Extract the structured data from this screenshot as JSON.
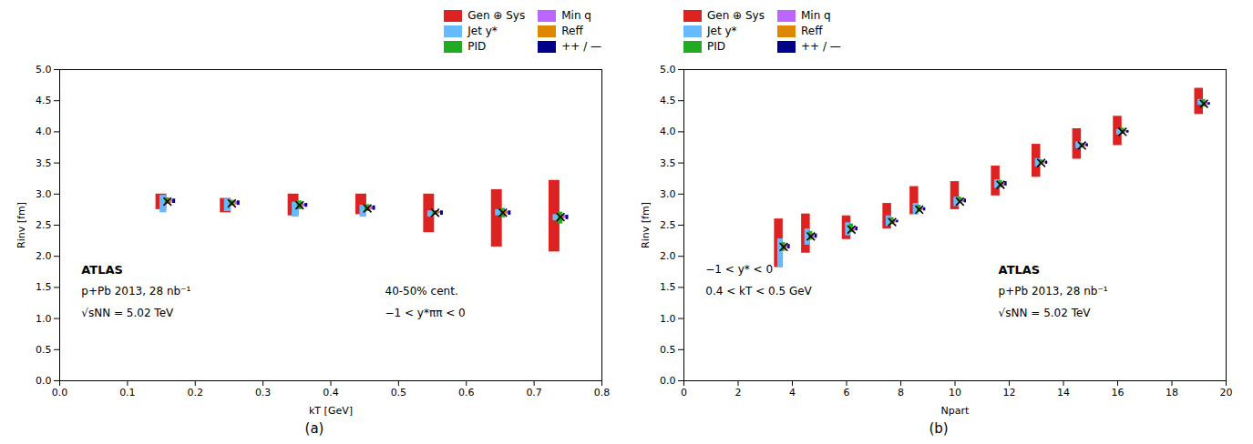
{
  "chart_data": [
    {
      "type": "bar",
      "xlabel": "kT [GeV]",
      "ylabel": "Rinv [fm]",
      "xlim": [
        0,
        0.8
      ],
      "ylim": [
        0,
        5
      ],
      "xticks": [
        {
          "value": 0,
          "label": "0.0"
        },
        0.1,
        0.2,
        0.3,
        0.4,
        0.5,
        0.6,
        0.7,
        0.8
      ],
      "yticks": [
        {
          "value": 0,
          "label": "0.0"
        },
        0.5,
        {
          "value": 1,
          "label": "1.0"
        },
        1.5,
        {
          "value": 2,
          "label": "2.0"
        },
        2.5,
        {
          "value": 3,
          "label": "3.0"
        },
        3.5,
        {
          "value": 4,
          "label": "4.0"
        },
        4.5,
        {
          "value": 5,
          "label": "5.0"
        }
      ],
      "x": [
        0.15,
        0.245,
        0.345,
        0.445,
        0.545,
        0.645,
        0.73
      ],
      "series": [
        {
          "name": "Gen ⊕ Sys",
          "color": "#dd2222",
          "low": [
            2.75,
            2.7,
            2.65,
            2.67,
            2.38,
            2.15,
            2.07
          ],
          "high": [
            3.0,
            2.93,
            3.0,
            3.0,
            3.0,
            3.07,
            3.22
          ]
        },
        {
          "name": "Jet y*",
          "color": "#66bbff",
          "low": [
            2.7,
            2.72,
            2.63,
            2.63,
            2.63,
            2.65,
            2.57
          ],
          "high": [
            2.98,
            2.92,
            2.87,
            2.82,
            2.73,
            2.75,
            2.67
          ]
        },
        {
          "name": "PID",
          "color": "#22aa22",
          "low": [
            2.84,
            2.81,
            2.75,
            2.72,
            2.66,
            2.62,
            2.52
          ],
          "high": [
            2.94,
            2.9,
            2.89,
            2.83,
            2.73,
            2.77,
            2.71
          ]
        },
        {
          "name": "Min q",
          "color": "#bb66ff",
          "low": [
            2.86,
            2.83,
            2.8,
            2.75,
            2.69,
            2.68,
            2.61
          ],
          "high": [
            2.91,
            2.88,
            2.84,
            2.8,
            2.72,
            2.72,
            2.66
          ]
        },
        {
          "name": "Reff",
          "color": "#dd8800",
          "low": [
            2.85,
            2.82,
            2.79,
            2.74,
            2.68,
            2.67,
            2.6
          ],
          "high": [
            2.92,
            2.89,
            2.85,
            2.81,
            2.73,
            2.73,
            2.67
          ]
        },
        {
          "name": "++ / —",
          "color": "#000088",
          "low": [
            2.85,
            2.82,
            2.79,
            2.74,
            2.66,
            2.66,
            2.59
          ],
          "high": [
            2.92,
            2.89,
            2.85,
            2.81,
            2.73,
            2.73,
            2.66
          ]
        }
      ],
      "central_values": {
        "values": [
          2.88,
          2.85,
          2.82,
          2.77,
          2.7,
          2.7,
          2.63
        ],
        "marker": "x",
        "color": "black"
      },
      "legend": "upper right",
      "annotations": [
        "ATLAS",
        "p+Pb 2013, 28 nb⁻¹",
        "√sNN = 5.02 TeV",
        "40-50% cent.",
        "−1 < y*ππ < 0"
      ],
      "caption": "(a)"
    },
    {
      "type": "bar",
      "xlabel": "Npart",
      "ylabel": "Rinv [fm]",
      "xlim": [
        0,
        20
      ],
      "ylim": [
        0,
        5
      ],
      "xticks": [
        0,
        2,
        4,
        6,
        8,
        10,
        12,
        14,
        16,
        18,
        20
      ],
      "yticks": [
        {
          "value": 0,
          "label": "0.0"
        },
        0.5,
        {
          "value": 1,
          "label": "1.0"
        },
        1.5,
        {
          "value": 2,
          "label": "2.0"
        },
        2.5,
        {
          "value": 3,
          "label": "3.0"
        },
        3.5,
        {
          "value": 4,
          "label": "4.0"
        },
        4.5,
        {
          "value": 5,
          "label": "5.0"
        }
      ],
      "x": [
        3.5,
        4.5,
        6.0,
        7.5,
        8.5,
        10.0,
        11.5,
        13.0,
        14.5,
        16.0,
        19.0
      ],
      "series": [
        {
          "name": "Gen ⊕ Sys",
          "color": "#dd2222",
          "low": [
            1.82,
            2.05,
            2.27,
            2.44,
            2.67,
            2.75,
            2.97,
            3.27,
            3.56,
            3.78,
            4.28
          ],
          "high": [
            2.6,
            2.68,
            2.65,
            2.85,
            3.12,
            3.2,
            3.45,
            3.8,
            4.05,
            4.25,
            4.7
          ]
        },
        {
          "name": "Jet y*",
          "color": "#66bbff",
          "low": [
            1.82,
            2.18,
            2.33,
            2.48,
            2.67,
            2.8,
            3.09,
            3.44,
            3.73,
            3.95,
            4.43
          ],
          "high": [
            2.28,
            2.44,
            2.54,
            2.65,
            2.85,
            2.95,
            3.23,
            3.57,
            3.84,
            4.04,
            4.52
          ]
        },
        {
          "name": "PID",
          "color": "#22aa22",
          "low": [
            2.08,
            2.26,
            2.38,
            2.51,
            2.71,
            2.85,
            3.1,
            3.47,
            3.74,
            3.96,
            4.4
          ],
          "high": [
            2.22,
            2.4,
            2.52,
            2.62,
            2.82,
            2.95,
            3.22,
            3.55,
            3.82,
            4.06,
            4.52
          ]
        },
        {
          "name": "Min q",
          "color": "#bb66ff",
          "low": [
            2.13,
            2.3,
            2.41,
            2.54,
            2.74,
            2.87,
            3.13,
            3.49,
            3.77,
            3.99,
            4.43
          ],
          "high": [
            2.18,
            2.35,
            2.46,
            2.57,
            2.77,
            2.9,
            3.17,
            3.52,
            3.8,
            4.02,
            4.47
          ]
        },
        {
          "name": "Reff",
          "color": "#dd8800",
          "low": [
            2.12,
            2.29,
            2.4,
            2.53,
            2.73,
            2.86,
            3.12,
            3.49,
            3.76,
            3.98,
            4.43
          ],
          "high": [
            2.19,
            2.36,
            2.47,
            2.58,
            2.78,
            2.91,
            3.18,
            3.52,
            3.8,
            4.03,
            4.48
          ]
        },
        {
          "name": "++ / —",
          "color": "#000088",
          "low": [
            2.12,
            2.29,
            2.41,
            2.54,
            2.73,
            2.86,
            3.13,
            3.48,
            3.76,
            3.98,
            4.43
          ],
          "high": [
            2.19,
            2.36,
            2.47,
            2.58,
            2.78,
            2.92,
            3.2,
            3.53,
            3.81,
            4.02,
            4.47
          ]
        }
      ],
      "central_values": {
        "values": [
          2.15,
          2.32,
          2.43,
          2.55,
          2.75,
          2.88,
          3.15,
          3.5,
          3.78,
          4.0,
          4.45
        ],
        "marker": "x",
        "color": "black"
      },
      "legend": "upper left",
      "annotations": [
        "−1 < y* < 0",
        "0.4 < kT < 0.5 GeV",
        "ATLAS",
        "p+Pb 2013, 28 nb⁻¹",
        "√sNN = 5.02 TeV"
      ],
      "caption": "(b)"
    }
  ]
}
